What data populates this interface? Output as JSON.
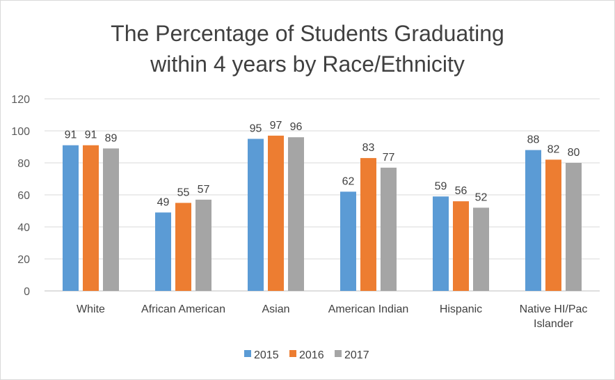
{
  "chart_data": {
    "type": "bar",
    "title_lines": [
      "The Percentage of Students Graduating",
      "within 4 years by Race/Ethnicity"
    ],
    "categories": [
      [
        "White"
      ],
      [
        "African American"
      ],
      [
        "Asian"
      ],
      [
        "American Indian"
      ],
      [
        "Hispanic"
      ],
      [
        "Native HI/Pac",
        "Islander"
      ]
    ],
    "series": [
      {
        "name": "2015",
        "color": "#5b9bd5",
        "values": [
          91,
          49,
          95,
          62,
          59,
          88
        ]
      },
      {
        "name": "2016",
        "color": "#ed7d31",
        "values": [
          91,
          55,
          97,
          83,
          56,
          82
        ]
      },
      {
        "name": "2017",
        "color": "#a5a5a5",
        "values": [
          89,
          57,
          96,
          77,
          52,
          80
        ]
      }
    ],
    "yticks": [
      "0",
      "20",
      "40",
      "60",
      "80",
      "100",
      "120"
    ],
    "ylim": [
      0,
      120
    ],
    "grid": true,
    "legend": "bottom",
    "data_labels": true
  }
}
